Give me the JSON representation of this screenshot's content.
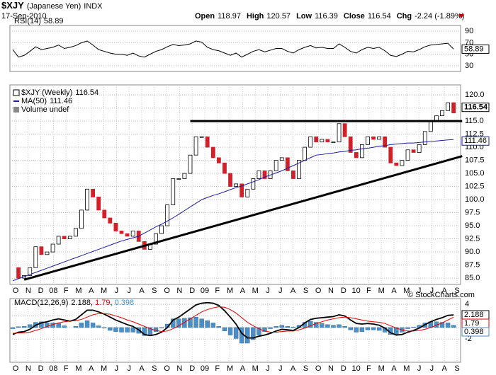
{
  "header": {
    "symbol": "$XJY",
    "name": "(Japanese Yen)",
    "exchange": "INDX",
    "date": "17-Sep-2010",
    "quote": [
      {
        "label": "Open",
        "value": 118.97
      },
      {
        "label": "High",
        "value": 120.57
      },
      {
        "label": "Low",
        "value": 116.39
      },
      {
        "label": "Close",
        "value": 116.54
      },
      {
        "label": "Chg",
        "value": "-2.24 (-1.89%)"
      }
    ],
    "watermark": "© StockCharts.com"
  },
  "chart_data": [
    {
      "type": "line",
      "series": [
        {
          "name": "RSI(14)",
          "color": "#000000",
          "values": [
            58,
            45,
            48,
            55,
            63,
            58,
            60,
            62,
            66,
            60,
            62,
            65,
            70,
            73,
            66,
            58,
            55,
            52,
            50,
            50,
            48,
            52,
            47,
            45,
            50,
            55,
            58,
            63,
            67,
            65,
            66,
            68,
            73,
            71,
            62,
            58,
            56,
            52,
            48,
            52,
            45,
            50,
            55,
            58,
            54,
            57,
            60,
            60,
            55,
            52,
            58,
            62,
            65,
            61,
            62,
            60,
            60,
            68,
            62,
            55,
            52,
            58,
            62,
            60,
            62,
            56,
            48,
            46,
            50,
            55,
            54,
            58,
            63,
            66,
            67,
            68,
            69,
            58.89
          ]
        }
      ],
      "ylim": [
        20,
        100
      ],
      "yticks": [
        90,
        70,
        50,
        30
      ],
      "grid": true
    },
    {
      "type": "candlestick",
      "series": [
        {
          "name": "$XJY (Weekly)",
          "color": "#000000",
          "down_color": "#d0202a",
          "values": [
            87,
            85,
            85.5,
            87,
            91,
            89.5,
            90,
            91.5,
            93,
            92.5,
            93,
            94.5,
            98,
            102,
            100.5,
            98,
            96.5,
            95.5,
            94,
            93.5,
            93,
            94,
            92,
            90.5,
            91.5,
            93.5,
            95,
            99,
            104,
            104,
            105,
            108.5,
            112,
            112,
            110,
            108,
            107,
            105,
            102.5,
            103,
            100.5,
            102,
            104,
            105.5,
            104,
            105.5,
            107.5,
            108,
            105.5,
            104,
            107.5,
            110,
            112,
            111,
            111.5,
            111,
            111,
            114.5,
            112,
            109,
            108,
            110.5,
            112,
            111.5,
            112,
            110,
            107,
            106.5,
            107.5,
            109.5,
            109,
            110.5,
            113,
            115,
            116,
            117,
            118.5,
            116.54
          ]
        },
        {
          "name": "MA(50)",
          "color": "#1c1c9c",
          "values": [
            84.5,
            84.9,
            85.3,
            85.7,
            86.1,
            86.5,
            86.9,
            87.3,
            87.7,
            88.1,
            88.5,
            88.9,
            89.3,
            89.7,
            90.1,
            90.5,
            90.9,
            91.3,
            91.7,
            92.1,
            92.4,
            92.7,
            93,
            93.6,
            94.2,
            94.8,
            95.3,
            95.9,
            96.5,
            97.2,
            97.9,
            98.6,
            99.3,
            100,
            100.4,
            100.8,
            101.1,
            101.5,
            101.9,
            102.3,
            102.6,
            103,
            103.4,
            103.8,
            104.3,
            104.7,
            105.1,
            105.5,
            106,
            106.5,
            107,
            107.5,
            108,
            108.5,
            108.6,
            108.8,
            108.9,
            109.1,
            109.2,
            109.4,
            109.5,
            109.7,
            109.8,
            110,
            110.2,
            110.3,
            110.5,
            110.6,
            110.7,
            110.8,
            110.8,
            110.9,
            111,
            111.1,
            111.2,
            111.3,
            111.4,
            111.46
          ]
        }
      ],
      "note": "Volume undef",
      "trendlines": [
        {
          "x": [
            2,
            78.5
          ],
          "values": [
            84.7,
            108.3
          ]
        },
        {
          "x": [
            31,
            78.5
          ],
          "values": [
            115,
            115
          ]
        }
      ],
      "ylim": [
        83.8,
        121.9
      ],
      "yticks": [
        {
          "value": 85,
          "label": "85.0"
        },
        87.5,
        {
          "value": 90,
          "label": "90.0"
        },
        92.5,
        {
          "value": 95,
          "label": "95.0"
        },
        97.5,
        {
          "value": 100,
          "label": "100.0"
        },
        102.5,
        {
          "value": 105,
          "label": "105.0"
        },
        107.5,
        {
          "value": 110,
          "label": "110.0"
        },
        112.5,
        {
          "value": 115,
          "label": "115.0"
        },
        117.5,
        {
          "value": 120,
          "label": "120.0"
        }
      ],
      "xtick_labels": [
        "O",
        "N",
        "D",
        "08",
        "F",
        "M",
        "A",
        "M",
        "J",
        "J",
        "A",
        "S",
        "O",
        "N",
        "D",
        "09",
        "F",
        "M",
        "A",
        "M",
        "J",
        "J",
        "A",
        "S",
        "O",
        "N",
        "D",
        "10",
        "F",
        "M",
        "A",
        "M",
        "J",
        "J",
        "A",
        "S"
      ],
      "grid": true
    },
    {
      "type": "macd",
      "title": "MACD(12,26,9)",
      "legend_separator": ", ",
      "series": [
        {
          "color": "#000000",
          "values": [
            -1.2,
            -0.8,
            -0.7,
            -0.3,
            0.4,
            0.8,
            1.0,
            1.3,
            1.5,
            1.3,
            1.1,
            1.4,
            2.2,
            3.0,
            3.0,
            2.7,
            2.3,
            1.8,
            1.3,
            0.9,
            0.5,
            0.2,
            -0.4,
            -1.2,
            -1.4,
            -1.2,
            -0.8,
            0.0,
            1.3,
            1.8,
            2.5,
            3.2,
            3.9,
            4.2,
            4.3,
            4.2,
            3.8,
            2.9,
            1.8,
            0.6,
            -1.0,
            -1.8,
            -1.8,
            -1.5,
            -1.3,
            -1.0,
            -0.6,
            -0.3,
            -0.4,
            -0.5,
            0.0,
            0.8,
            1.4,
            1.6,
            1.7,
            1.8,
            1.9,
            2.2,
            2.0,
            1.3,
            0.7,
            0.6,
            0.7,
            0.6,
            0.4,
            -0.1,
            -0.9,
            -1.3,
            -1.2,
            -0.8,
            -0.5,
            -0.1,
            0.5,
            1.0,
            1.4,
            1.7,
            2.1,
            2.188
          ]
        },
        {
          "color": "#e00000",
          "values": [
            -1.0,
            -0.95,
            -0.9,
            -0.8,
            -0.5,
            -0.2,
            0.2,
            0.5,
            0.8,
            1.0,
            1.1,
            1.2,
            1.4,
            1.8,
            2.2,
            2.4,
            2.4,
            2.3,
            2.0,
            1.7,
            1.3,
            1.0,
            0.6,
            0.2,
            -0.2,
            -0.5,
            -0.7,
            -0.6,
            -0.2,
            0.3,
            0.9,
            1.5,
            2.1,
            2.7,
            3.1,
            3.4,
            3.6,
            3.5,
            3.1,
            2.5,
            1.7,
            0.9,
            0.3,
            -0.2,
            -0.6,
            -0.8,
            -0.8,
            -0.7,
            -0.6,
            -0.6,
            -0.4,
            -0.1,
            0.3,
            0.7,
            1.0,
            1.3,
            1.5,
            1.7,
            1.8,
            1.7,
            1.5,
            1.3,
            1.1,
            1.0,
            0.9,
            0.7,
            0.3,
            -0.1,
            -0.4,
            -0.6,
            -0.6,
            -0.5,
            -0.3,
            0.0,
            0.4,
            0.8,
            1.3,
            1.79
          ]
        },
        {
          "color": "#4a8fc8",
          "kind": "histogram",
          "values": [
            -0.2,
            0.15,
            0.2,
            0.5,
            0.9,
            1.0,
            0.8,
            0.8,
            0.7,
            0.3,
            0,
            0.2,
            0.8,
            1.2,
            0.8,
            0.3,
            -0.1,
            -0.5,
            -0.7,
            -0.8,
            -0.8,
            -0.8,
            -1.0,
            -1.4,
            -1.2,
            -0.7,
            -0.1,
            0.6,
            1.5,
            1.5,
            1.6,
            1.7,
            1.8,
            1.5,
            1.2,
            0.8,
            0.2,
            -0.6,
            -1.3,
            -1.9,
            -2.7,
            -2.7,
            -2.1,
            -1.3,
            -0.7,
            -0.2,
            0.2,
            0.4,
            0.2,
            0.1,
            0.4,
            0.9,
            1.1,
            0.9,
            0.7,
            0.5,
            0.4,
            0.5,
            0.2,
            -0.4,
            -0.8,
            -0.7,
            -0.4,
            -0.4,
            -0.5,
            -0.8,
            -1.2,
            -1.2,
            -0.8,
            -0.2,
            0.1,
            0.4,
            0.8,
            1.0,
            1.0,
            0.9,
            0.8,
            0.398
          ]
        }
      ],
      "ylim": [
        -6,
        5
      ],
      "yticks": [
        4,
        2,
        0,
        -2
      ],
      "xtick_labels": [
        "O",
        "N",
        "D",
        "08",
        "F",
        "M",
        "A",
        "M",
        "J",
        "J",
        "A",
        "S",
        "O",
        "N",
        "D",
        "09",
        "F",
        "M",
        "A",
        "M",
        "J",
        "J",
        "A",
        "S",
        "O",
        "N",
        "D",
        "10",
        "F",
        "M",
        "A",
        "M",
        "J",
        "J",
        "A",
        "S"
      ],
      "grid": true
    }
  ]
}
